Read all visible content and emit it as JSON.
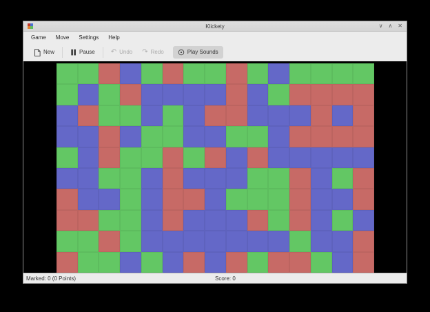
{
  "window": {
    "title": "Klickety",
    "controls": {
      "minimize": "∨",
      "maximize": "∧",
      "close": "✕"
    }
  },
  "menubar": {
    "items": [
      {
        "label": "Game"
      },
      {
        "label": "Move"
      },
      {
        "label": "Settings"
      },
      {
        "label": "Help"
      }
    ]
  },
  "toolbar": {
    "new_label": "New",
    "pause_label": "Pause",
    "undo_label": "Undo",
    "redo_label": "Redo",
    "play_sounds_label": "Play Sounds"
  },
  "board": {
    "rows": 10,
    "cols": 15,
    "palette": {
      "G": "#63c764",
      "R": "#c76a66",
      "B": "#6468c8"
    },
    "cells": [
      "GGRBGRGGRGBGGGG",
      "GBGRBBBBRBGRRRR",
      "BRGGBGBRRBBBRBR",
      "BBRBGGBBGGBRRRR",
      "GBRGGRGRBRBBBBB",
      "BBGGBRBBBGGRBGR",
      "RBBGBRRBGGGRBBR",
      "RRGGBRBBBRGRBGB",
      "GGRGBBBBBBBGBBR",
      "RGGBGBRBRGRRGBR"
    ]
  },
  "statusbar": {
    "marked": "Marked: 0 (0 Points)",
    "score": "Score: 0"
  }
}
